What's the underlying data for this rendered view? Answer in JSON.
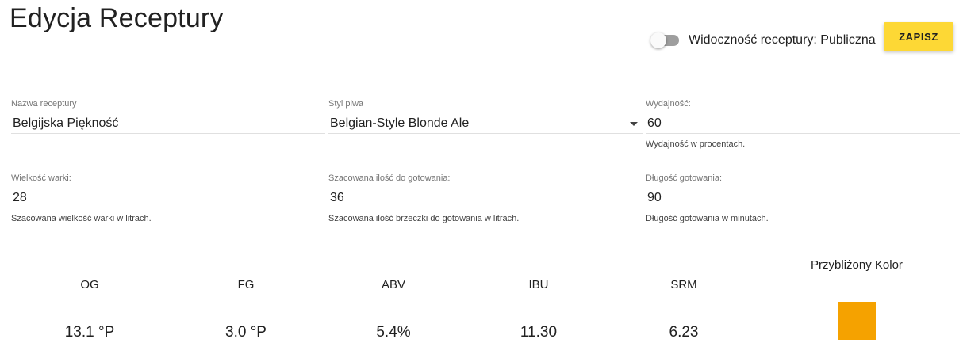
{
  "header": {
    "title": "Edycja Receptury",
    "visibility_label": "Widoczność receptury: Publiczna",
    "save_label": "ZAPISZ"
  },
  "form": {
    "name": {
      "label": "Nazwa receptury",
      "value": "Belgijska Piękność"
    },
    "style": {
      "label": "Styl piwa",
      "value": "Belgian-Style Blonde Ale"
    },
    "efficiency": {
      "label": "Wydajność:",
      "value": "60",
      "hint": "Wydajność w procentach."
    },
    "batch_size": {
      "label": "Wielkość warki:",
      "value": "28",
      "hint": "Szacowana wielkość warki w litrach."
    },
    "boil_size": {
      "label": "Szacowana ilość do gotowania:",
      "value": "36",
      "hint": "Szacowana ilość brzeczki do gotowania w litrach."
    },
    "boil_time": {
      "label": "Długość gotowania:",
      "value": "90",
      "hint": "Długość gotowania w minutach."
    }
  },
  "stats": {
    "og": {
      "label": "OG",
      "value": "13.1 °P"
    },
    "fg": {
      "label": "FG",
      "value": "3.0 °P"
    },
    "abv": {
      "label": "ABV",
      "value": "5.4%"
    },
    "ibu": {
      "label": "IBU",
      "value": "11.30"
    },
    "srm": {
      "label": "SRM",
      "value": "6.23"
    }
  },
  "color": {
    "label": "Przybliżony Kolor",
    "swatch": "#f5a200"
  },
  "theme": {
    "accent": "#fdd835",
    "toggle_off": "#9e9e9e"
  }
}
